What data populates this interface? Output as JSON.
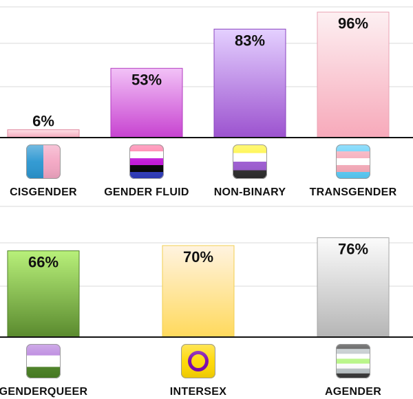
{
  "chart_data": [
    {
      "type": "bar",
      "categories": [
        "CISGENDER",
        "GENDER FLUID",
        "NON-BINARY",
        "TRANSGENDER"
      ],
      "values": [
        6,
        53,
        83,
        96
      ],
      "value_labels": [
        "6%",
        "53%",
        "83%",
        "96%"
      ],
      "ylim": [
        0,
        100
      ],
      "grid": true,
      "legend": "none",
      "icons": [
        "cisgender-flag-icon",
        "gender-fluid-flag-icon",
        "non-binary-flag-icon",
        "transgender-flag-icon"
      ],
      "bar_colors": [
        [
          "#fde0e6",
          "#f4a8bb"
        ],
        [
          "#f2c2f7",
          "#c742d0"
        ],
        [
          "#e4d0ff",
          "#9c52cf"
        ],
        [
          "#fdf0f2",
          "#f7a9ba"
        ]
      ],
      "bar_borders": [
        "#e08aa0",
        "#b23cc0",
        "#8a44bf",
        "#eaa3b4"
      ]
    },
    {
      "type": "bar",
      "categories": [
        "GENDERQUEER",
        "INTERSEX",
        "AGENDER"
      ],
      "values": [
        66,
        70,
        76
      ],
      "value_labels": [
        "66%",
        "70%",
        "76%"
      ],
      "ylim": [
        0,
        100
      ],
      "grid": true,
      "legend": "none",
      "icons": [
        "genderqueer-flag-icon",
        "intersex-flag-icon",
        "agender-flag-icon"
      ],
      "bar_colors": [
        [
          "#b8f07a",
          "#5a8a2e"
        ],
        [
          "#fff3e0",
          "#ffd95c"
        ],
        [
          "#fbfbfb",
          "#b5b5b5"
        ]
      ],
      "bar_borders": [
        "#4f7f2a",
        "#f0cf50",
        "#a6a6a6"
      ]
    }
  ]
}
